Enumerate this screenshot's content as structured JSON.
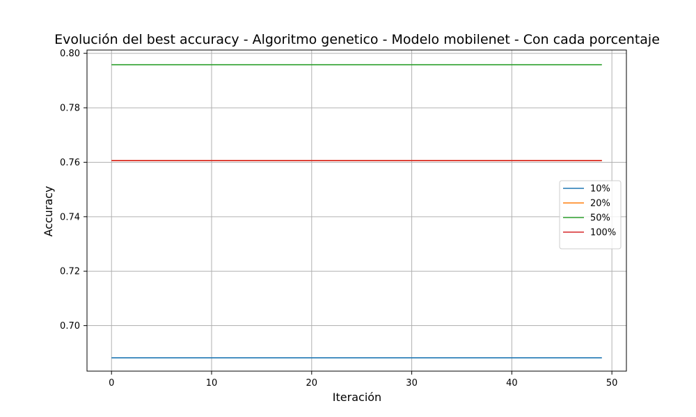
{
  "chart_data": {
    "type": "line",
    "title": "Evolución del best accuracy - Algoritmo genetico - Modelo mobilenet - Con cada porcentaje",
    "xlabel": "Iteración",
    "ylabel": "Accuracy",
    "xlim": [
      -2.45,
      51.45
    ],
    "ylim": [
      0.6833,
      0.8012
    ],
    "xticks": [
      0,
      10,
      20,
      30,
      40,
      50
    ],
    "yticks": [
      0.7,
      0.72,
      0.74,
      0.76,
      0.78,
      0.8
    ],
    "ytick_labels": [
      "0.70",
      "0.72",
      "0.74",
      "0.76",
      "0.78",
      "0.80"
    ],
    "grid": true,
    "legend_position": "center-right",
    "x_range": [
      0,
      49
    ],
    "series": [
      {
        "name": "10%",
        "color": "#1f77b4",
        "value": 0.6882
      },
      {
        "name": "20%",
        "color": "#ff7f0e",
        "value": 0.7606
      },
      {
        "name": "50%",
        "color": "#2ca02c",
        "value": 0.7958
      },
      {
        "name": "100%",
        "color": "#d62728",
        "value": 0.7606
      }
    ]
  }
}
